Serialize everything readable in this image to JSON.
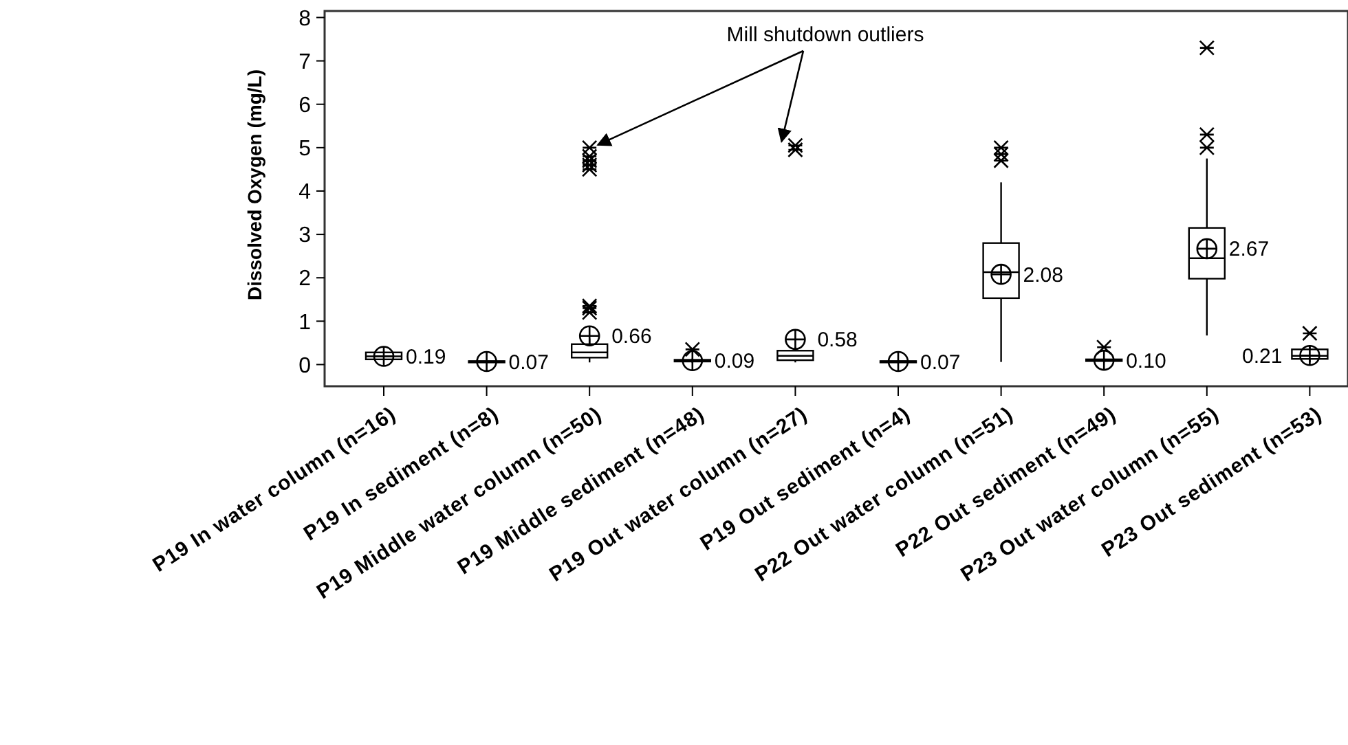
{
  "chart_data": {
    "type": "box",
    "ylabel": "Dissolved Oxygen (mg/L)",
    "categories": [
      "P19 In water column (n=16)",
      "P19 In sediment (n=8)",
      "P19 Middle water column (n=50)",
      "P19 Middle sediment (n=48)",
      "P19 Out water column (n=27)",
      "P19 Out sediment (n=4)",
      "P22 Out water column (n=51)",
      "P22 Out sediment (n=49)",
      "P23 Out water column (n=55)",
      "P23 Out sediment (n=53)"
    ],
    "boxes": [
      {
        "low": 0.1,
        "q1": 0.12,
        "median": 0.19,
        "q3": 0.28,
        "high": 0.3,
        "mean": 0.19
      },
      {
        "low": 0.05,
        "q1": 0.06,
        "median": 0.07,
        "q3": 0.08,
        "high": 0.09,
        "mean": 0.07
      },
      {
        "low": 0.05,
        "q1": 0.16,
        "median": 0.28,
        "q3": 0.47,
        "high": 0.6,
        "mean": 0.66,
        "outliers": [
          1.2,
          1.3,
          1.35,
          4.5,
          4.6,
          4.7,
          4.8,
          5.0
        ]
      },
      {
        "low": 0.04,
        "q1": 0.07,
        "median": 0.09,
        "q3": 0.11,
        "high": 0.14,
        "mean": 0.09,
        "outliers": [
          0.35
        ]
      },
      {
        "low": 0.05,
        "q1": 0.1,
        "median": 0.2,
        "q3": 0.32,
        "high": 0.4,
        "mean": 0.58,
        "outliers": [
          4.95,
          5.05
        ]
      },
      {
        "low": 0.05,
        "q1": 0.06,
        "median": 0.07,
        "q3": 0.08,
        "high": 0.09,
        "mean": 0.07
      },
      {
        "low": 0.06,
        "q1": 1.53,
        "median": 2.13,
        "q3": 2.8,
        "high": 4.2,
        "mean": 2.08,
        "outliers": [
          4.7,
          4.85,
          5.0
        ]
      },
      {
        "low": 0.05,
        "q1": 0.08,
        "median": 0.1,
        "q3": 0.12,
        "high": 0.14,
        "mean": 0.1,
        "outliers": [
          0.4
        ]
      },
      {
        "low": 0.67,
        "q1": 1.98,
        "median": 2.45,
        "q3": 3.15,
        "high": 4.75,
        "mean": 2.67,
        "outliers": [
          5.0,
          5.3,
          7.3
        ]
      },
      {
        "low": 0.05,
        "q1": 0.13,
        "median": 0.2,
        "q3": 0.35,
        "high": 0.45,
        "mean": 0.21,
        "outliers": [
          0.72
        ]
      }
    ],
    "value_labels": [
      "0.19",
      "0.07",
      "0.66",
      "0.09",
      "0.58",
      "0.07",
      "2.08",
      "0.10",
      "2.67",
      "0.21"
    ],
    "annotations": [
      "Mill shutdown outliers"
    ],
    "ylim": [
      -0.5,
      8.15
    ],
    "yticks": [
      0,
      1,
      2,
      3,
      4,
      5,
      6,
      7,
      8
    ],
    "grid": false
  }
}
